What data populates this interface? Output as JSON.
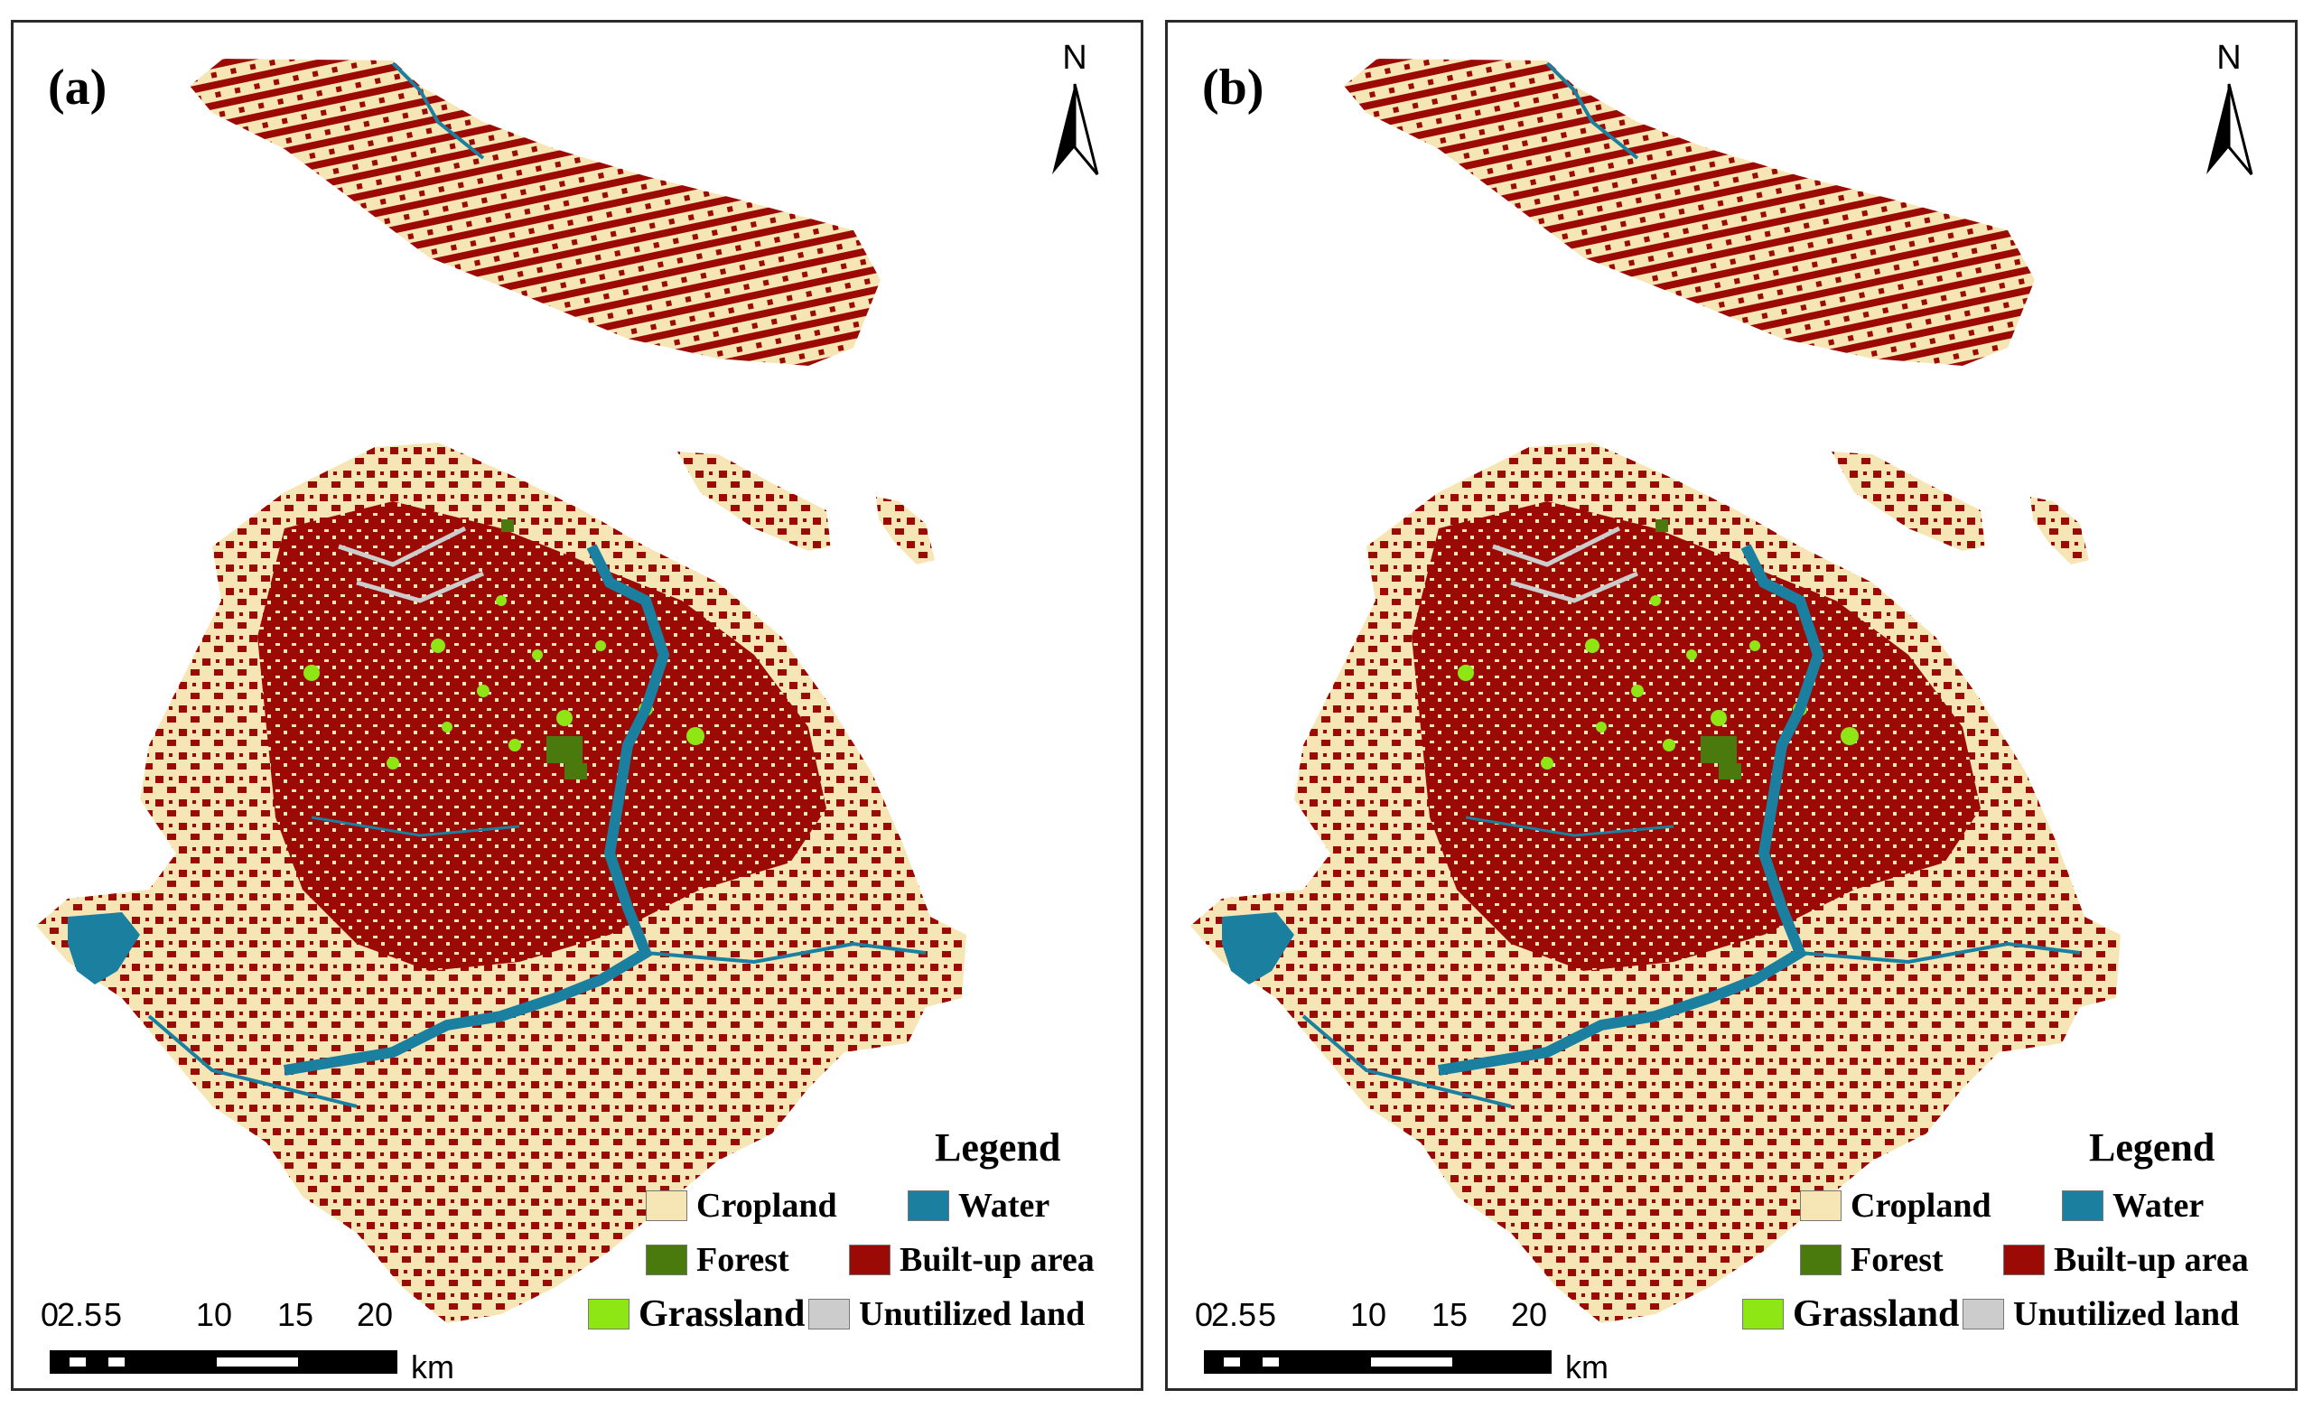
{
  "panels": [
    {
      "id": "a",
      "label": "(a)"
    },
    {
      "id": "b",
      "label": "(b)"
    }
  ],
  "north": {
    "label": "N"
  },
  "legend": {
    "title": "Legend",
    "items": [
      {
        "key": "cropland",
        "label": "Cropland",
        "color": "#f7e6b5"
      },
      {
        "key": "water",
        "label": "Water",
        "color": "#1b7fa0"
      },
      {
        "key": "forest",
        "label": "Forest",
        "color": "#4a7a0e"
      },
      {
        "key": "builtup",
        "label": "Built-up area",
        "color": "#9c0a06"
      },
      {
        "key": "grassland",
        "label": "Grassland",
        "color": "#8ee614"
      },
      {
        "key": "unutilized",
        "label": "Unutilized land",
        "color": "#cccccc"
      }
    ]
  },
  "scale": {
    "ticks": [
      "0",
      "2.5",
      "5",
      "10",
      "15",
      "20"
    ],
    "unit": "km"
  },
  "colors": {
    "cropland": "#f7e6b5",
    "builtup": "#9c0a06",
    "water": "#1b7fa0",
    "forest": "#4a7a0e",
    "grassland": "#8ee614",
    "unutilized": "#cccccc"
  }
}
